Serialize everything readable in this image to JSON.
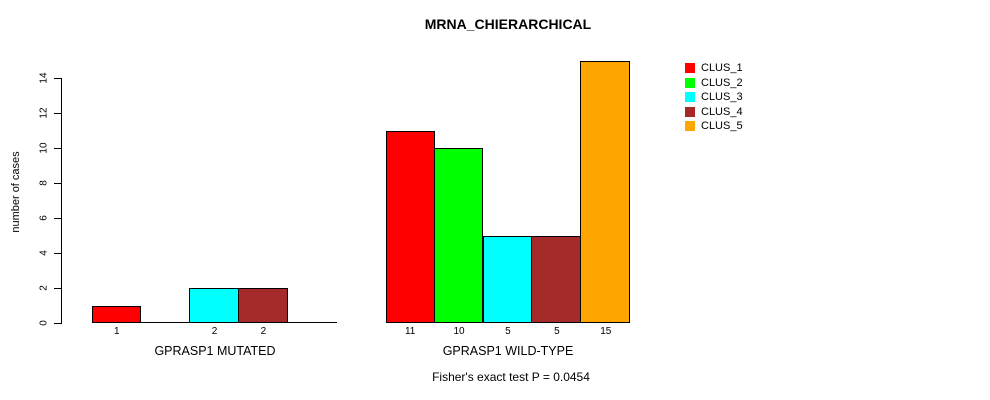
{
  "title": "MRNA_CHIERARCHICAL",
  "footnote": "Fisher's exact test P = 0.0454",
  "y_axis": {
    "label": "number of cases",
    "ticks": [
      0,
      2,
      4,
      6,
      8,
      10,
      12,
      14
    ]
  },
  "legend": {
    "items": [
      {
        "label": "CLUS_1",
        "color": "#FF0000"
      },
      {
        "label": "CLUS_2",
        "color": "#00FF00"
      },
      {
        "label": "CLUS_3",
        "color": "#00FFFF"
      },
      {
        "label": "CLUS_4",
        "color": "#A52A2A"
      },
      {
        "label": "CLUS_5",
        "color": "#FFA500"
      }
    ]
  },
  "chart_data": {
    "type": "bar",
    "title": "MRNA_CHIERARCHICAL",
    "ylabel": "number of cases",
    "xlabel": "",
    "ylim": [
      0,
      15
    ],
    "grid": false,
    "legend_position": "right-outside",
    "series": [
      "CLUS_1",
      "CLUS_2",
      "CLUS_3",
      "CLUS_4",
      "CLUS_5"
    ],
    "colors": [
      "#FF0000",
      "#00FF00",
      "#00FFFF",
      "#A52A2A",
      "#FFA500"
    ],
    "groups": [
      {
        "label": "GPRASP1 MUTATED",
        "values": [
          1,
          0,
          2,
          2,
          0
        ],
        "bar_labels": [
          "1",
          "",
          "2",
          "2",
          ""
        ]
      },
      {
        "label": "GPRASP1 WILD-TYPE",
        "values": [
          11,
          10,
          5,
          5,
          15
        ],
        "bar_labels": [
          "11",
          "10",
          "5",
          "5",
          "15"
        ]
      }
    ],
    "annotation": "Fisher's exact test P = 0.0454"
  }
}
